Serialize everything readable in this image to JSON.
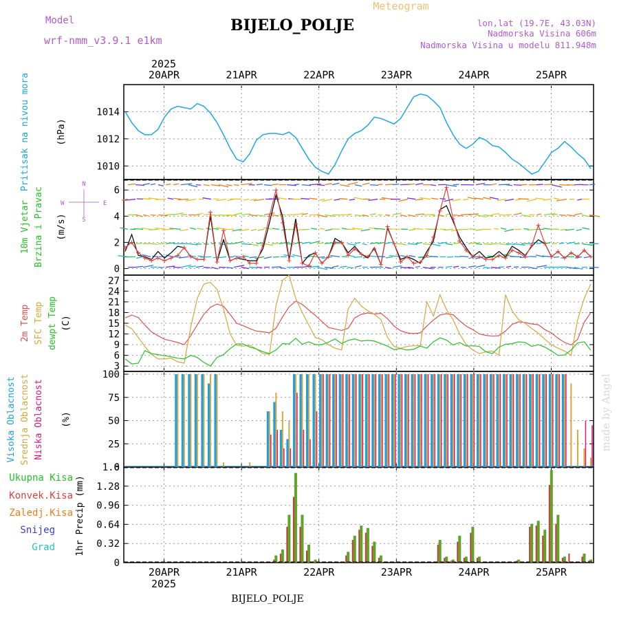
{
  "header": {
    "station": "BIJELO_POLJE",
    "product": "Meteogram",
    "model_label": "Model",
    "model_name": "wrf-nmm_v3.9.1 e1km",
    "lonlat": "lon,lat (19.7E, 43.03N)",
    "elevation": "Nadmorska Visina 606m",
    "elevation_model": "Nadmorska Visina u modelu 811.948m",
    "year": "2025",
    "footer": "BIJELO_POLJE",
    "credit": "made by Angel"
  },
  "colors": {
    "pressure": "#1aa7e6",
    "wind_speed": "#000000",
    "wind_gust": "#e0403a",
    "t2m": "#e0504a",
    "tsfc": "#d9a53a",
    "dewpt": "#22c422",
    "cloud_high": "#1aa0e6",
    "cloud_mid": "#d9a53a",
    "cloud_low": "#d61a7a",
    "precip_total": "#5fa32a",
    "precip_conv": "#c0392b",
    "title_purple": "#b05ad0",
    "title_orange": "#f0c070",
    "grid": "#999999"
  },
  "chart_data": [
    {
      "type": "line",
      "id": "pressure",
      "y_label_rotated": "Pritisak na nivou mora",
      "unit": "(hPa)",
      "x_ticks": [
        "20APR",
        "21APR",
        "22APR",
        "23APR",
        "24APR",
        "25APR"
      ],
      "x_start": "2025-04-19T12",
      "x_end": "2025-04-25T12",
      "ylim": [
        1009.0,
        1016.0
      ],
      "y_ticks": [
        1010,
        1012,
        1014
      ],
      "series": [
        {
          "values": [
            1014.0,
            1013.2,
            1012.6,
            1012.3,
            1012.3,
            1012.7,
            1013.6,
            1014.2,
            1014.4,
            1014.3,
            1014.2,
            1014.6,
            1014.4,
            1013.9,
            1013.2,
            1012.3,
            1011.3,
            1010.5,
            1010.3,
            1010.9,
            1011.9,
            1012.3,
            1012.4,
            1012.4,
            1012.3,
            1012.5,
            1012.1,
            1011.3,
            1010.5,
            1009.9,
            1009.6,
            1009.4,
            1010.1,
            1011.1,
            1012.0,
            1012.4,
            1012.6,
            1013.0,
            1013.6,
            1013.5,
            1013.3,
            1013.1,
            1013.5,
            1014.3,
            1015.1,
            1015.3,
            1015.2,
            1014.8,
            1014.3,
            1013.2,
            1012.3,
            1011.6,
            1011.3,
            1011.6,
            1012.1,
            1011.9,
            1011.5,
            1011.4,
            1011.0,
            1010.5,
            1010.2,
            1009.8,
            1009.4,
            1009.6,
            1010.3,
            1011.0,
            1011.3,
            1011.8,
            1011.4,
            1010.9,
            1010.5,
            1009.8
          ]
        }
      ]
    },
    {
      "type": "line",
      "id": "wind",
      "y_label_rotated": "10m Vjetar Brzina i Pravac",
      "unit": "(m/s)",
      "compass": [
        "N",
        "W",
        "E",
        "S"
      ],
      "ylim": [
        -0.5,
        6.8
      ],
      "y_ticks": [
        0,
        2,
        4,
        6
      ],
      "series": [
        {
          "name": "speed",
          "values": [
            1.3,
            2.6,
            1.0,
            0.9,
            0.7,
            1.3,
            0.8,
            1.2,
            1.7,
            1.6,
            0.9,
            0.7,
            0.7,
            4.0,
            0.5,
            2.2,
            0.6,
            0.8,
            0.7,
            0.6,
            0.6,
            1.5,
            3.5,
            5.6,
            4.0,
            0.7,
            3.8,
            0.4,
            1.0,
            1.2,
            0.4,
            0.9,
            2.3,
            2.0,
            1.2,
            1.7,
            1.1,
            0.8,
            1.6,
            0.3,
            3.1,
            1.9,
            0.7,
            0.9,
            0.7,
            0.4,
            1.3,
            2.1,
            4.5,
            4.8,
            3.6,
            2.4,
            1.6,
            0.9,
            1.3,
            0.8,
            0.9,
            1.3,
            0.9,
            1.7,
            1.4,
            1.0,
            1.7,
            2.2,
            1.9,
            0.9,
            1.3,
            0.8,
            1.2,
            0.9,
            1.4,
            0.9
          ]
        },
        {
          "name": "gust",
          "values": [
            1.6,
            2.0,
            1.2,
            0.8,
            0.6,
            0.8,
            0.6,
            0.8,
            1.0,
            1.6,
            0.9,
            0.7,
            0.7,
            4.3,
            0.5,
            2.9,
            0.6,
            0.8,
            0.9,
            0.4,
            0.4,
            1.8,
            4.0,
            6.0,
            3.5,
            0.6,
            3.4,
            0.4,
            0.2,
            1.2,
            0.4,
            0.9,
            2.0,
            2.0,
            1.0,
            1.5,
            1.1,
            0.9,
            1.5,
            0.3,
            3.2,
            1.9,
            0.5,
            0.9,
            0.4,
            0.5,
            1.0,
            2.4,
            4.4,
            6.2,
            3.8,
            2.1,
            1.4,
            0.9,
            0.9,
            0.7,
            0.7,
            1.0,
            0.8,
            1.4,
            1.2,
            0.9,
            1.8,
            3.3,
            1.9,
            0.9,
            1.3,
            0.8,
            1.2,
            0.9,
            1.4,
            0.9
          ]
        }
      ]
    },
    {
      "type": "line",
      "id": "temperature",
      "y_label_rotated": "2m Temp",
      "y_label_rotated_2": "SFC Temp",
      "y_label_rotated_3": "dewpt Temp",
      "unit": "(C)",
      "ylim": [
        1.5,
        28.5
      ],
      "y_ticks": [
        3,
        6,
        9,
        12,
        15,
        18,
        21,
        24,
        27
      ],
      "series": [
        {
          "name": "2m Temp",
          "values": [
            16.5,
            17.3,
            16.6,
            14.5,
            12.6,
            11.5,
            10.5,
            10.1,
            9.6,
            9.0,
            11.5,
            14.6,
            17.5,
            19.5,
            20.4,
            19.8,
            17.5,
            15.0,
            14.3,
            13.5,
            12.8,
            12.6,
            12.3,
            13.6,
            16.8,
            19.6,
            21.2,
            20.3,
            18.7,
            17.2,
            15.5,
            13.8,
            13.4,
            13.0,
            13.6,
            16.5,
            17.5,
            17.9,
            17.6,
            17.8,
            16.3,
            14.2,
            12.9,
            12.3,
            12.1,
            12.3,
            14.2,
            15.9,
            17.3,
            17.7,
            17.4,
            15.7,
            14.2,
            13.2,
            12.0,
            11.6,
            11.4,
            11.5,
            12.8,
            14.7,
            15.4,
            15.2,
            14.8,
            14.6,
            13.2,
            12.3,
            10.8,
            9.6,
            8.9,
            10.5,
            15.3,
            18.0
          ]
        },
        {
          "name": "SFC Temp",
          "values": [
            14.5,
            13.5,
            11.0,
            8.5,
            6.3,
            5.0,
            5.0,
            5.2,
            4.2,
            3.8,
            14.0,
            22.0,
            26.0,
            26.5,
            24.5,
            19.0,
            12.0,
            8.8,
            8.6,
            8.8,
            7.8,
            6.5,
            6.3,
            20.0,
            27.0,
            28.5,
            22.0,
            18.0,
            14.5,
            11.0,
            10.4,
            9.0,
            8.0,
            7.5,
            19.0,
            22.0,
            19.8,
            18.5,
            17.5,
            16.0,
            11.0,
            8.5,
            8.0,
            8.5,
            8.7,
            8.7,
            21.0,
            17.0,
            23.0,
            18.8,
            16.0,
            12.0,
            9.0,
            7.5,
            6.5,
            7.0,
            7.2,
            6.0,
            23.0,
            18.5,
            16.0,
            15.0,
            13.5,
            12.2,
            10.5,
            9.0,
            8.0,
            7.2,
            6.0,
            16.0,
            22.0,
            26.0
          ]
        },
        {
          "name": "dewpt Temp",
          "values": [
            5.0,
            3.6,
            3.8,
            7.3,
            6.5,
            6.2,
            5.9,
            5.6,
            5.2,
            5.0,
            6.0,
            5.4,
            4.0,
            3.0,
            5.4,
            6.2,
            7.9,
            9.2,
            9.2,
            8.3,
            7.8,
            7.0,
            6.5,
            7.5,
            9.3,
            9.2,
            10.8,
            9.1,
            9.8,
            9.0,
            9.0,
            9.7,
            10.6,
            9.3,
            10.2,
            10.6,
            10.0,
            10.2,
            10.0,
            9.3,
            8.6,
            7.6,
            7.9,
            7.5,
            7.7,
            8.6,
            8.0,
            9.8,
            10.9,
            10.3,
            8.9,
            9.6,
            8.6,
            8.7,
            8.5,
            7.0,
            6.5,
            8.3,
            9.1,
            9.3,
            9.8,
            9.6,
            8.5,
            9.0,
            8.3,
            7.2,
            6.0,
            6.1,
            7.5,
            9.5,
            9.8,
            7.4
          ]
        }
      ]
    },
    {
      "type": "bar",
      "id": "cloud",
      "y_label_rotated": "Visoka Oblacnost",
      "y_label_rotated_2": "Srednja Oblacnost",
      "y_label_rotated_3": "Niska Oblacnost",
      "unit": "(%)",
      "ylim": [
        0,
        103
      ],
      "y_ticks": [
        0,
        25,
        50,
        75,
        100
      ],
      "series": [
        {
          "name": "high",
          "values": [
            0,
            0,
            0,
            0,
            0,
            0,
            0,
            0,
            100,
            100,
            100,
            100,
            100,
            90,
            100,
            0,
            0,
            0,
            0,
            0,
            0,
            0,
            60,
            70,
            40,
            30,
            100,
            100,
            100,
            100,
            100,
            100,
            100,
            100,
            100,
            100,
            100,
            100,
            100,
            100,
            100,
            100,
            100,
            100,
            100,
            100,
            100,
            100,
            100,
            100,
            100,
            100,
            100,
            100,
            100,
            100,
            100,
            100,
            100,
            100,
            100,
            100,
            100,
            100,
            100,
            100,
            100,
            100,
            0,
            0,
            0,
            0
          ]
        },
        {
          "name": "mid",
          "values": [
            0,
            0,
            0,
            0,
            0,
            0,
            0,
            0,
            100,
            100,
            100,
            100,
            100,
            100,
            100,
            5,
            0,
            0,
            0,
            5,
            0,
            0,
            60,
            80,
            60,
            50,
            100,
            100,
            100,
            100,
            100,
            100,
            100,
            100,
            100,
            100,
            100,
            100,
            100,
            100,
            100,
            100,
            100,
            100,
            100,
            100,
            100,
            100,
            100,
            100,
            100,
            100,
            100,
            100,
            100,
            100,
            100,
            100,
            100,
            100,
            100,
            100,
            100,
            100,
            100,
            100,
            100,
            100,
            90,
            40,
            20,
            10
          ]
        },
        {
          "name": "low",
          "values": [
            0,
            0,
            0,
            0,
            0,
            0,
            0,
            0,
            0,
            0,
            0,
            0,
            0,
            0,
            0,
            0,
            0,
            0,
            0,
            0,
            0,
            0,
            35,
            40,
            20,
            20,
            80,
            40,
            30,
            60,
            100,
            100,
            100,
            100,
            100,
            100,
            100,
            100,
            100,
            100,
            100,
            100,
            100,
            100,
            100,
            100,
            100,
            100,
            100,
            100,
            100,
            100,
            100,
            100,
            100,
            100,
            100,
            100,
            100,
            100,
            100,
            100,
            100,
            100,
            100,
            100,
            100,
            100,
            0,
            0,
            50,
            45
          ]
        }
      ]
    },
    {
      "type": "bar",
      "id": "precip",
      "y_label_rotated": "1hr Precip (mm)",
      "legend": [
        "Ukupna Kisa",
        "Konvek.Kisa",
        "Zaledj.Kisa",
        "Snijeg",
        "Grad"
      ],
      "ylim": [
        0,
        1.6
      ],
      "y_ticks": [
        "0",
        "0.32",
        "0.64",
        "0.96",
        "1.28",
        "1.6"
      ],
      "series": [
        {
          "name": "Ukupna Kisa",
          "values": [
            0,
            0,
            0,
            0,
            0,
            0,
            0,
            0,
            0,
            0,
            0,
            0,
            0,
            0,
            0,
            0,
            0,
            0,
            0,
            0,
            0,
            0,
            0,
            0.12,
            0.22,
            0.8,
            1.5,
            0.8,
            0.3,
            0.05,
            0,
            0,
            0,
            0,
            0.18,
            0.45,
            0.62,
            0.58,
            0.35,
            0.12,
            0,
            0,
            0,
            0,
            0,
            0,
            0,
            0,
            0.38,
            0.1,
            0.05,
            0.45,
            0.1,
            0.6,
            0.1,
            0,
            0,
            0,
            0,
            0,
            0.05,
            0,
            0.65,
            0.7,
            0.55,
            1.55,
            0.8,
            0.1,
            0,
            0,
            0.15,
            0.05
          ]
        },
        {
          "name": "Konvek.Kisa",
          "values": [
            0,
            0,
            0,
            0,
            0,
            0,
            0,
            0,
            0,
            0,
            0,
            0,
            0,
            0,
            0,
            0,
            0,
            0,
            0,
            0,
            0,
            0,
            0,
            0.05,
            0.15,
            0.6,
            1.1,
            0.6,
            0.2,
            0.02,
            0,
            0,
            0,
            0,
            0.12,
            0.38,
            0.55,
            0.5,
            0.28,
            0.08,
            0,
            0,
            0,
            0,
            0,
            0,
            0,
            0,
            0.3,
            0.08,
            0.03,
            0.35,
            0.08,
            0.5,
            0.08,
            0,
            0,
            0,
            0,
            0,
            0.03,
            0,
            0.6,
            0.62,
            0.45,
            1.3,
            0.65,
            0.08,
            0.15,
            0,
            0.1,
            0.03
          ]
        }
      ]
    }
  ]
}
